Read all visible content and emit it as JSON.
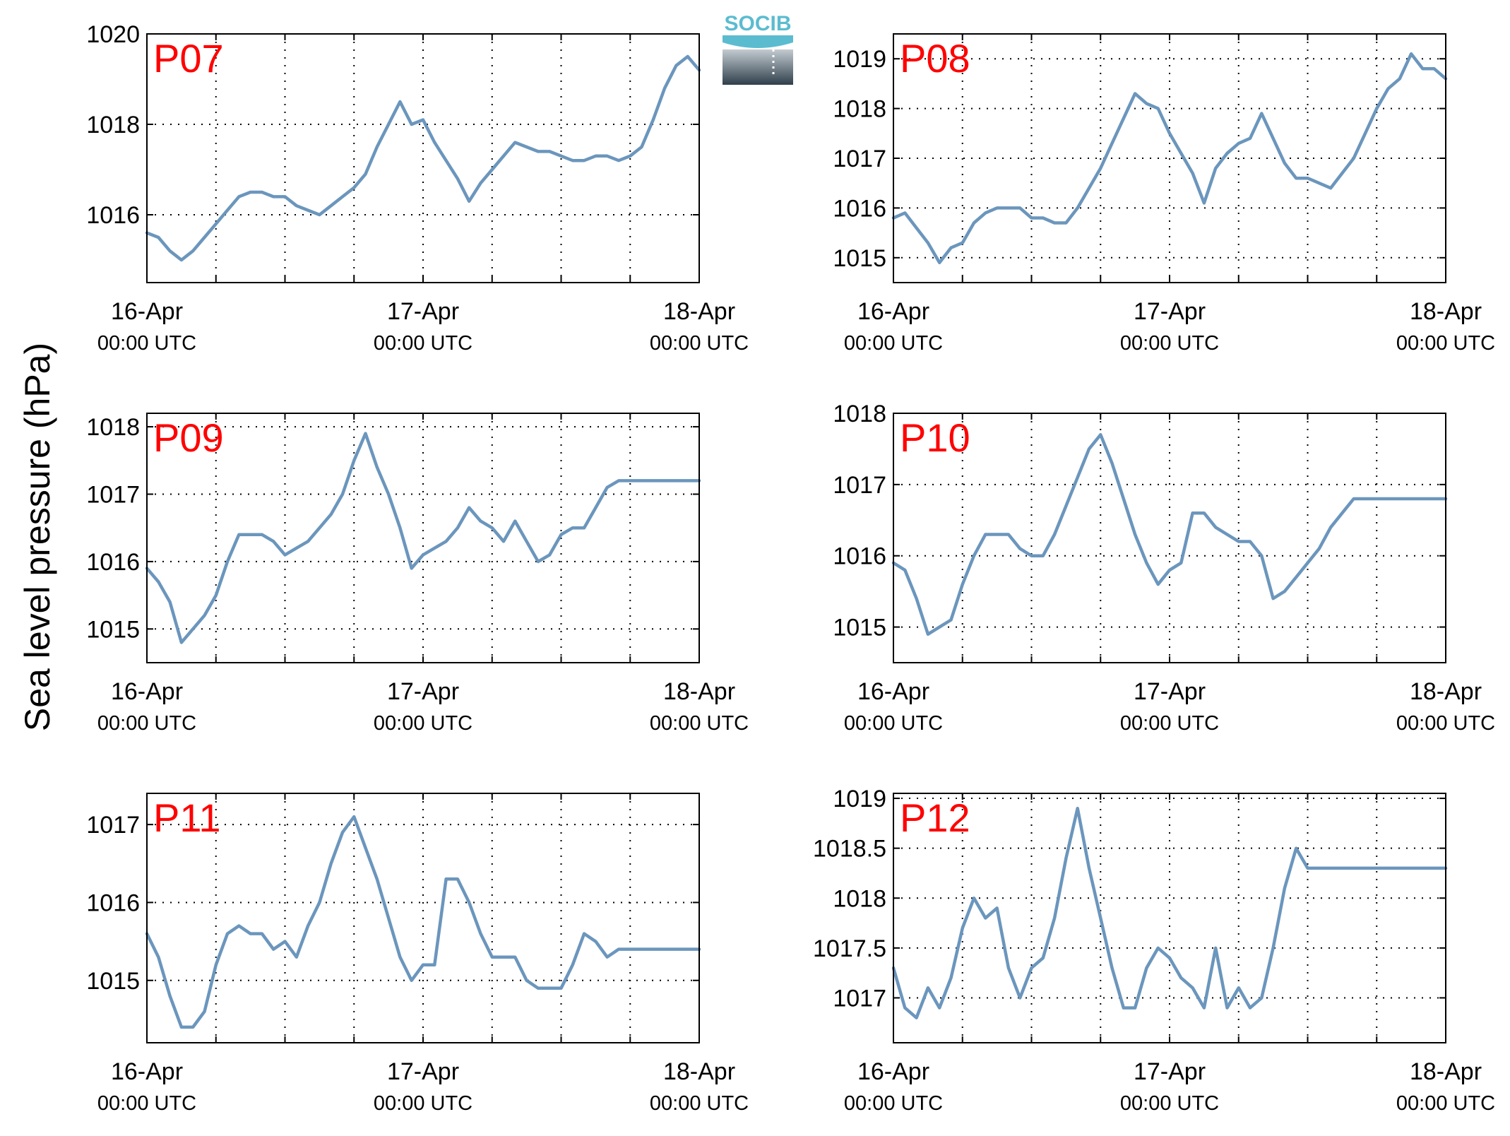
{
  "figure": {
    "ylabel": "Sea level pressure (hPa)",
    "logo_text": "SOCIB",
    "x_ticks": [
      {
        "t": 0,
        "line1": "16-Apr",
        "line2": "00:00 UTC"
      },
      {
        "t": 24,
        "line1": "17-Apr",
        "line2": "00:00 UTC"
      },
      {
        "t": 48,
        "line1": "18-Apr",
        "line2": "00:00 UTC"
      }
    ],
    "x_grid_hours": [
      6,
      12,
      18,
      24,
      30,
      36,
      42
    ],
    "colors": {
      "series": "#6b96bd",
      "panel_label": "#ff0000",
      "logo": "#5bbcd0"
    }
  },
  "chart_data": [
    {
      "type": "line",
      "title": "P07",
      "xlabel": "",
      "ylabel": "Sea level pressure (hPa)",
      "x_unit": "hours since 16-Apr 00:00 UTC",
      "xlim": [
        0,
        48
      ],
      "ylim": [
        1014.5,
        1020
      ],
      "yticks": [
        1016,
        1018,
        1020
      ],
      "grid": true,
      "x": [
        0,
        1,
        2,
        3,
        4,
        5,
        6,
        7,
        8,
        9,
        10,
        11,
        12,
        13,
        14,
        15,
        16,
        17,
        18,
        19,
        20,
        21,
        22,
        23,
        24,
        25,
        26,
        27,
        28,
        29,
        30,
        31,
        32,
        33,
        34,
        35,
        36,
        37,
        38,
        39,
        40,
        41,
        42,
        43,
        44,
        45,
        46,
        47,
        48
      ],
      "values": [
        1015.6,
        1015.5,
        1015.2,
        1015.0,
        1015.2,
        1015.5,
        1015.8,
        1016.1,
        1016.4,
        1016.5,
        1016.5,
        1016.4,
        1016.4,
        1016.2,
        1016.1,
        1016.0,
        1016.2,
        1016.4,
        1016.6,
        1016.9,
        1017.5,
        1018.0,
        1018.5,
        1018.0,
        1018.1,
        1017.6,
        1017.2,
        1016.8,
        1016.3,
        1016.7,
        1017.0,
        1017.3,
        1017.6,
        1017.5,
        1017.4,
        1017.4,
        1017.3,
        1017.2,
        1017.2,
        1017.3,
        1017.3,
        1017.2,
        1017.3,
        1017.5,
        1018.1,
        1018.8,
        1019.3,
        1019.5,
        1019.2
      ]
    },
    {
      "type": "line",
      "title": "P08",
      "xlabel": "",
      "ylabel": "Sea level pressure (hPa)",
      "x_unit": "hours since 16-Apr 00:00 UTC",
      "xlim": [
        0,
        48
      ],
      "ylim": [
        1014.5,
        1019.5
      ],
      "yticks": [
        1015,
        1016,
        1017,
        1018,
        1019
      ],
      "grid": true,
      "x": [
        0,
        1,
        2,
        3,
        4,
        5,
        6,
        7,
        8,
        9,
        10,
        11,
        12,
        13,
        14,
        15,
        16,
        17,
        18,
        19,
        20,
        21,
        22,
        23,
        24,
        25,
        26,
        27,
        28,
        29,
        30,
        31,
        32,
        33,
        34,
        35,
        36,
        37,
        38,
        39,
        40,
        41,
        42,
        43,
        44,
        45,
        46,
        47,
        48
      ],
      "values": [
        1015.8,
        1015.9,
        1015.6,
        1015.3,
        1014.9,
        1015.2,
        1015.3,
        1015.7,
        1015.9,
        1016.0,
        1016.0,
        1016.0,
        1015.8,
        1015.8,
        1015.7,
        1015.7,
        1016.0,
        1016.4,
        1016.8,
        1017.3,
        1017.8,
        1018.3,
        1018.1,
        1018.0,
        1017.5,
        1017.1,
        1016.7,
        1016.1,
        1016.8,
        1017.1,
        1017.3,
        1017.4,
        1017.9,
        1017.4,
        1016.9,
        1016.6,
        1016.6,
        1016.5,
        1016.4,
        1016.7,
        1017.0,
        1017.5,
        1018.0,
        1018.4,
        1018.6,
        1019.1,
        1018.8,
        1018.8,
        1018.6
      ]
    },
    {
      "type": "line",
      "title": "P09",
      "xlabel": "",
      "ylabel": "Sea level pressure (hPa)",
      "x_unit": "hours since 16-Apr 00:00 UTC",
      "xlim": [
        0,
        48
      ],
      "ylim": [
        1014.5,
        1018.2
      ],
      "yticks": [
        1015,
        1016,
        1017,
        1018
      ],
      "grid": true,
      "x": [
        0,
        1,
        2,
        3,
        4,
        5,
        6,
        7,
        8,
        9,
        10,
        11,
        12,
        13,
        14,
        15,
        16,
        17,
        18,
        19,
        20,
        21,
        22,
        23,
        24,
        25,
        26,
        27,
        28,
        29,
        30,
        31,
        32,
        33,
        34,
        35,
        36,
        37,
        38,
        39,
        40,
        41,
        42,
        43,
        44,
        45,
        46,
        47,
        48
      ],
      "values": [
        1015.9,
        1015.7,
        1015.4,
        1014.8,
        1015.0,
        1015.2,
        1015.5,
        1016.0,
        1016.4,
        1016.4,
        1016.4,
        1016.3,
        1016.1,
        1016.2,
        1016.3,
        1016.5,
        1016.7,
        1017.0,
        1017.5,
        1017.9,
        1017.4,
        1017.0,
        1016.5,
        1015.9,
        1016.1,
        1016.2,
        1016.3,
        1016.5,
        1016.8,
        1016.6,
        1016.5,
        1016.3,
        1016.6,
        1016.3,
        1016.0,
        1016.1,
        1016.4,
        1016.5,
        1016.5,
        1016.8,
        1017.1,
        1017.2,
        1017.2,
        1017.2,
        1017.2,
        1017.2,
        1017.2,
        1017.2,
        1017.2
      ]
    },
    {
      "type": "line",
      "title": "P10",
      "xlabel": "",
      "ylabel": "Sea level pressure (hPa)",
      "x_unit": "hours since 16-Apr 00:00 UTC",
      "xlim": [
        0,
        48
      ],
      "ylim": [
        1014.5,
        1018
      ],
      "yticks": [
        1015,
        1016,
        1017,
        1018
      ],
      "grid": true,
      "x": [
        0,
        1,
        2,
        3,
        4,
        5,
        6,
        7,
        8,
        9,
        10,
        11,
        12,
        13,
        14,
        15,
        16,
        17,
        18,
        19,
        20,
        21,
        22,
        23,
        24,
        25,
        26,
        27,
        28,
        29,
        30,
        31,
        32,
        33,
        34,
        35,
        36,
        37,
        38,
        39,
        40,
        41,
        42,
        43,
        44,
        45,
        46,
        47,
        48
      ],
      "values": [
        1015.9,
        1015.8,
        1015.4,
        1014.9,
        1015.0,
        1015.1,
        1015.6,
        1016.0,
        1016.3,
        1016.3,
        1016.3,
        1016.1,
        1016.0,
        1016.0,
        1016.3,
        1016.7,
        1017.1,
        1017.5,
        1017.7,
        1017.3,
        1016.8,
        1016.3,
        1015.9,
        1015.6,
        1015.8,
        1015.9,
        1016.6,
        1016.6,
        1016.4,
        1016.3,
        1016.2,
        1016.2,
        1016.0,
        1015.4,
        1015.5,
        1015.7,
        1015.9,
        1016.1,
        1016.4,
        1016.6,
        1016.8,
        1016.8,
        1016.8,
        1016.8,
        1016.8,
        1016.8,
        1016.8,
        1016.8,
        1016.8
      ]
    },
    {
      "type": "line",
      "title": "P11",
      "xlabel": "",
      "ylabel": "Sea level pressure (hPa)",
      "x_unit": "hours since 16-Apr 00:00 UTC",
      "xlim": [
        0,
        48
      ],
      "ylim": [
        1014.2,
        1017.4
      ],
      "yticks": [
        1015,
        1016,
        1017
      ],
      "grid": true,
      "x": [
        0,
        1,
        2,
        3,
        4,
        5,
        6,
        7,
        8,
        9,
        10,
        11,
        12,
        13,
        14,
        15,
        16,
        17,
        18,
        19,
        20,
        21,
        22,
        23,
        24,
        25,
        26,
        27,
        28,
        29,
        30,
        31,
        32,
        33,
        34,
        35,
        36,
        37,
        38,
        39,
        40,
        41,
        42,
        43,
        44,
        45,
        46,
        47,
        48
      ],
      "values": [
        1015.6,
        1015.3,
        1014.8,
        1014.4,
        1014.4,
        1014.6,
        1015.2,
        1015.6,
        1015.7,
        1015.6,
        1015.6,
        1015.4,
        1015.5,
        1015.3,
        1015.7,
        1016.0,
        1016.5,
        1016.9,
        1017.1,
        1016.7,
        1016.3,
        1015.8,
        1015.3,
        1015.0,
        1015.2,
        1015.2,
        1016.3,
        1016.3,
        1016.0,
        1015.6,
        1015.3,
        1015.3,
        1015.3,
        1015.0,
        1014.9,
        1014.9,
        1014.9,
        1015.2,
        1015.6,
        1015.5,
        1015.3,
        1015.4,
        1015.4,
        1015.4,
        1015.4,
        1015.4,
        1015.4,
        1015.4,
        1015.4
      ]
    },
    {
      "type": "line",
      "title": "P12",
      "xlabel": "",
      "ylabel": "Sea level pressure (hPa)",
      "x_unit": "hours since 16-Apr 00:00 UTC",
      "xlim": [
        0,
        48
      ],
      "ylim": [
        1016.55,
        1019.05
      ],
      "yticks": [
        1017,
        1017.5,
        1018,
        1018.5,
        1019
      ],
      "grid": true,
      "x": [
        0,
        1,
        2,
        3,
        4,
        5,
        6,
        7,
        8,
        9,
        10,
        11,
        12,
        13,
        14,
        15,
        16,
        17,
        18,
        19,
        20,
        21,
        22,
        23,
        24,
        25,
        26,
        27,
        28,
        29,
        30,
        31,
        32,
        33,
        34,
        35,
        36,
        37,
        38,
        39,
        40,
        41,
        42,
        43,
        44,
        45,
        46,
        47,
        48
      ],
      "values": [
        1017.3,
        1016.9,
        1016.8,
        1017.1,
        1016.9,
        1017.2,
        1017.7,
        1018.0,
        1017.8,
        1017.9,
        1017.3,
        1017.0,
        1017.3,
        1017.4,
        1017.8,
        1018.4,
        1018.9,
        1018.3,
        1017.8,
        1017.3,
        1016.9,
        1016.9,
        1017.3,
        1017.5,
        1017.4,
        1017.2,
        1017.1,
        1016.9,
        1017.5,
        1016.9,
        1017.1,
        1016.9,
        1017.0,
        1017.5,
        1018.1,
        1018.5,
        1018.3,
        1018.3,
        1018.3,
        1018.3,
        1018.3,
        1018.3,
        1018.3,
        1018.3,
        1018.3,
        1018.3,
        1018.3,
        1018.3,
        1018.3
      ]
    }
  ]
}
